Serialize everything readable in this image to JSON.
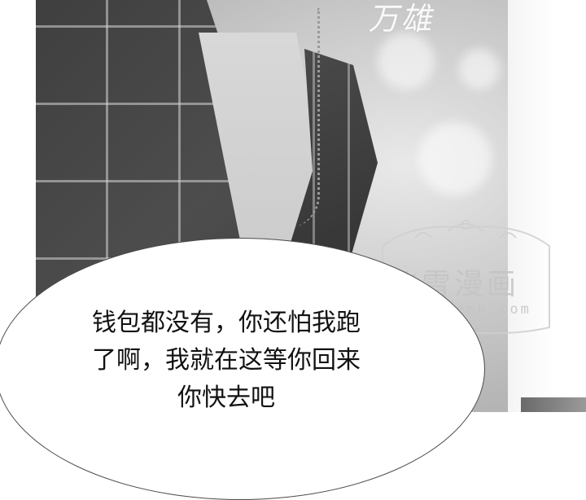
{
  "panel": {
    "signature_text": "万雄"
  },
  "watermark": {
    "title": "飞雪漫画",
    "url": "feixuemh.com"
  },
  "speech_bubble": {
    "lines": [
      "钱包都没有，你还怕我跑",
      "了啊，我就在这等你回来",
      "你快去吧"
    ]
  }
}
